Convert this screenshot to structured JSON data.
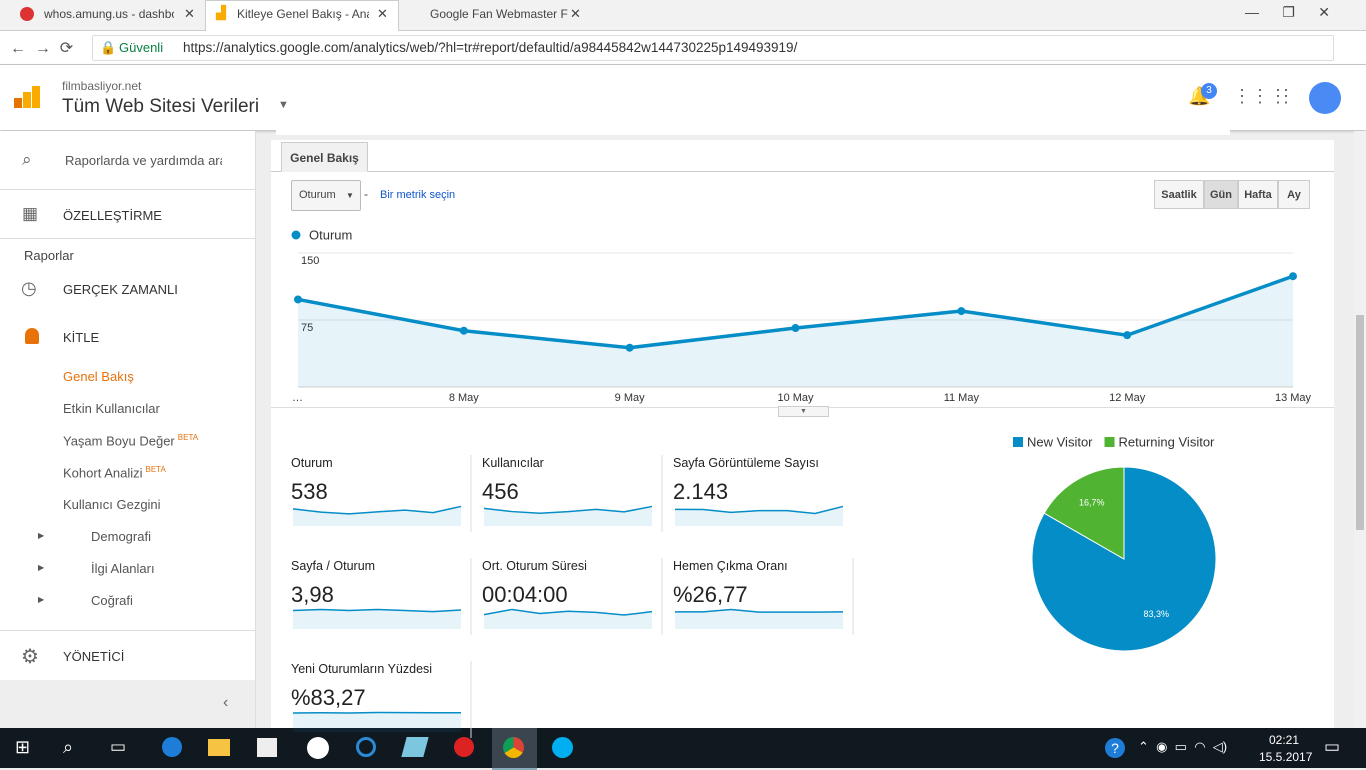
{
  "browser": {
    "tabs": [
      "whos.amung.us - dashbo",
      "Kitleye Genel Bakış - Ana",
      "Google Fan Webmaster F"
    ],
    "secure": "Güvenli",
    "url": "https://analytics.google.com/analytics/web/?hl=tr#report/defaultid/a98445842w144730225p149493919/"
  },
  "header": {
    "site": "filmbasliyor.net",
    "view": "Tüm Web Sitesi Verileri",
    "notifications": "3"
  },
  "sidebar": {
    "search": "Raporlarda ve yardımda ara",
    "customize": "ÖZELLEŞTİRME",
    "reports": "Raporlar",
    "realtime": "GERÇEK ZAMANLI",
    "audience": "KİTLE",
    "items": [
      {
        "label": "Genel Bakış"
      },
      {
        "label": "Etkin Kullanıcılar"
      },
      {
        "label": "Yaşam Boyu Değer",
        "badge": "BETA"
      },
      {
        "label": "Kohort Analizi",
        "badge": "BETA"
      },
      {
        "label": "Kullanıcı Gezgini"
      }
    ],
    "groups": [
      "Demografi",
      "İlgi Alanları",
      "Coğrafi"
    ],
    "admin": "YÖNETİCİ"
  },
  "report": {
    "tab": "Genel Bakış",
    "metric": "Oturum",
    "separator": "-",
    "pick": "Bir metrik seçin",
    "periods": [
      "Saatlik",
      "Gün",
      "Hafta",
      "Ay"
    ]
  },
  "chart_data": [
    {
      "type": "line",
      "legend": "Oturum",
      "color": "#058dc7",
      "categories": [
        "…",
        "8 May",
        "9 May",
        "10 May",
        "11 May",
        "12 May",
        "13 May"
      ],
      "values": [
        98,
        63,
        44,
        66,
        85,
        58,
        124
      ],
      "ylim": [
        0,
        150
      ],
      "yticks": [
        75,
        150
      ],
      "grid": true
    },
    {
      "type": "pie",
      "categories": [
        "New Visitor",
        "Returning Visitor"
      ],
      "values": [
        83.3,
        16.7
      ],
      "value_labels": [
        "83,3%",
        "16,7%"
      ],
      "colors": [
        "#058dc7",
        "#50b432"
      ]
    }
  ],
  "metrics": [
    {
      "label": "Oturum",
      "value": "538",
      "trend": [
        98,
        63,
        44,
        66,
        85,
        58,
        124
      ]
    },
    {
      "label": "Kullanıcılar",
      "value": "456",
      "trend": [
        82,
        55,
        40,
        54,
        74,
        52,
        99
      ]
    },
    {
      "label": "Sayfa Görüntüleme Sayısı",
      "value": "2.143",
      "trend": [
        390,
        380,
        250,
        330,
        330,
        200,
        520
      ]
    },
    {
      "label": "Sayfa / Oturum",
      "value": "3,98",
      "trend": [
        3.9,
        4.3,
        3.9,
        4.3,
        3.9,
        3.5,
        4.1
      ]
    },
    {
      "label": "Ort. Oturum Süresi",
      "value": "00:04:00",
      "trend": [
        170,
        310,
        200,
        260,
        230,
        160,
        250
      ]
    },
    {
      "label": "Hemen Çıkma Oranı",
      "value": "%26,77",
      "trend": [
        27,
        27,
        34,
        26,
        26,
        26,
        27
      ]
    },
    {
      "label": "Yeni Oturumların Yüzdesi",
      "value": "%83,27",
      "trend": [
        84,
        86,
        84,
        88,
        87,
        86,
        86
      ]
    }
  ],
  "taskbar": {
    "time": "02:21",
    "date": "15.5.2017"
  }
}
